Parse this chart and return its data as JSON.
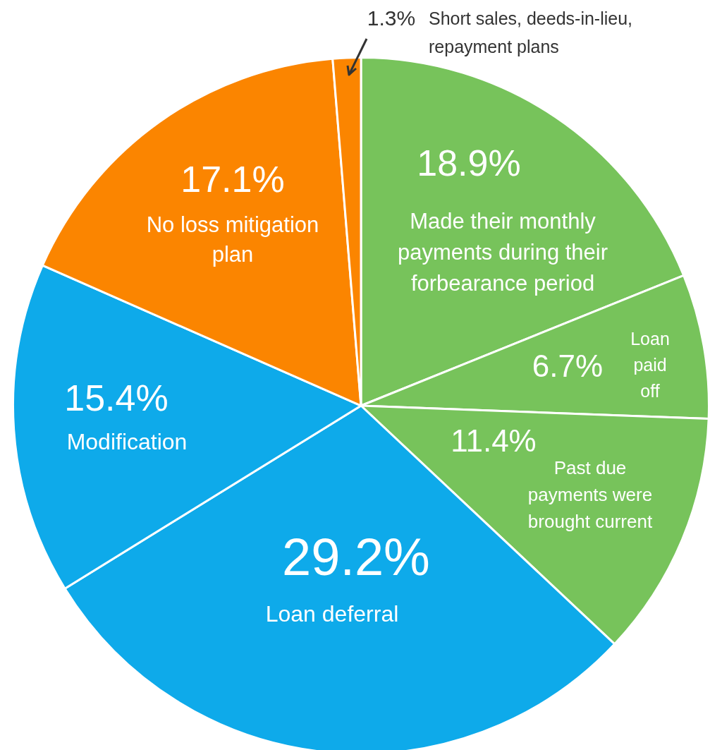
{
  "chart_data": {
    "type": "pie",
    "categories": [
      "Made their monthly payments during their forbearance period",
      "Loan paid off",
      "Past due payments were brought current",
      "Loan deferral",
      "Modification",
      "No loss mitigation plan",
      "Short sales, deeds-in-lieu, repayment plans"
    ],
    "values": [
      18.9,
      6.7,
      11.4,
      29.2,
      15.4,
      17.1,
      1.3
    ],
    "value_labels": [
      "18.9%",
      "6.7%",
      "11.4%",
      "29.2%",
      "15.4%",
      "17.1%",
      "1.3%"
    ],
    "colors": [
      "#77c35b",
      "#77c35b",
      "#77c35b",
      "#0eaaea",
      "#0eaaea",
      "#fb8500",
      "#fb8500"
    ],
    "legend": false
  }
}
